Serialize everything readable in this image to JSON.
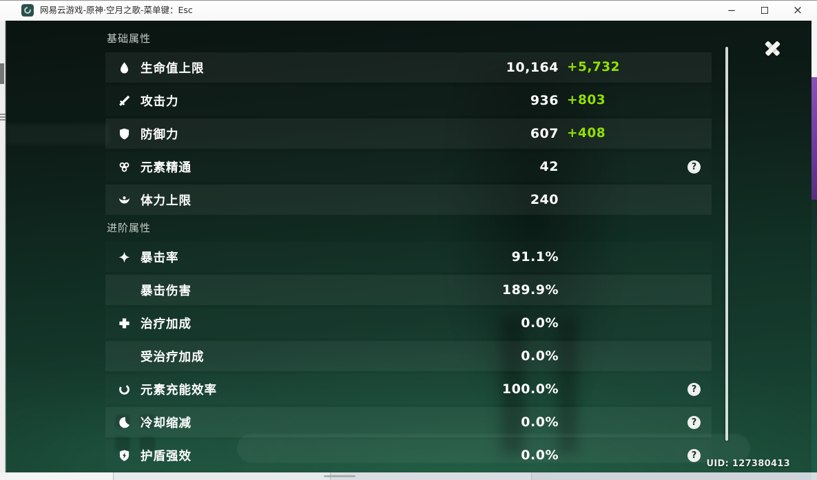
{
  "window": {
    "title": "网易云游戏-原神·空月之歌-菜单键：Esc",
    "controls": [
      "minimize-icon",
      "maximize-icon",
      "close-icon"
    ]
  },
  "glyphs": {
    "minimize": "−",
    "close": "×",
    "help": "?"
  },
  "colors": {
    "bonus_green": "#92e000",
    "panel_bg_dark_teal": "#123226"
  },
  "panel": {
    "sections": [
      {
        "title": "基础属性",
        "rows": [
          {
            "icon": "droplet-icon",
            "label": "生命值上限",
            "value": "10,164",
            "bonus": "+5,732",
            "help": false
          },
          {
            "icon": "sword-icon",
            "label": "攻击力",
            "value": "936",
            "bonus": "+803",
            "help": false
          },
          {
            "icon": "shield-icon",
            "label": "防御力",
            "value": "607",
            "bonus": "+408",
            "help": false
          },
          {
            "icon": "clover-icon",
            "label": "元素精通",
            "value": "42",
            "bonus": null,
            "help": true
          },
          {
            "icon": "stamina-icon",
            "label": "体力上限",
            "value": "240",
            "bonus": null,
            "help": false
          }
        ]
      },
      {
        "title": "进阶属性",
        "rows": [
          {
            "icon": "crit-star-icon",
            "label": "暴击率",
            "value": "91.1%",
            "bonus": null,
            "help": false
          },
          {
            "icon": null,
            "label": "暴击伤害",
            "value": "189.9%",
            "bonus": null,
            "help": false
          },
          {
            "icon": "healing-cross-icon",
            "label": "治疗加成",
            "value": "0.0%",
            "bonus": null,
            "help": false
          },
          {
            "icon": null,
            "label": "受治疗加成",
            "value": "0.0%",
            "bonus": null,
            "help": false
          },
          {
            "icon": "energy-ring-icon",
            "label": "元素充能效率",
            "value": "100.0%",
            "bonus": null,
            "help": true
          },
          {
            "icon": "cooldown-moon-icon",
            "label": "冷却缩减",
            "value": "0.0%",
            "bonus": null,
            "help": true
          },
          {
            "icon": "shield-bolt-icon",
            "label": "护盾强效",
            "value": "0.0%",
            "bonus": null,
            "help": true
          }
        ]
      }
    ],
    "uid": "UID: 127380413"
  }
}
